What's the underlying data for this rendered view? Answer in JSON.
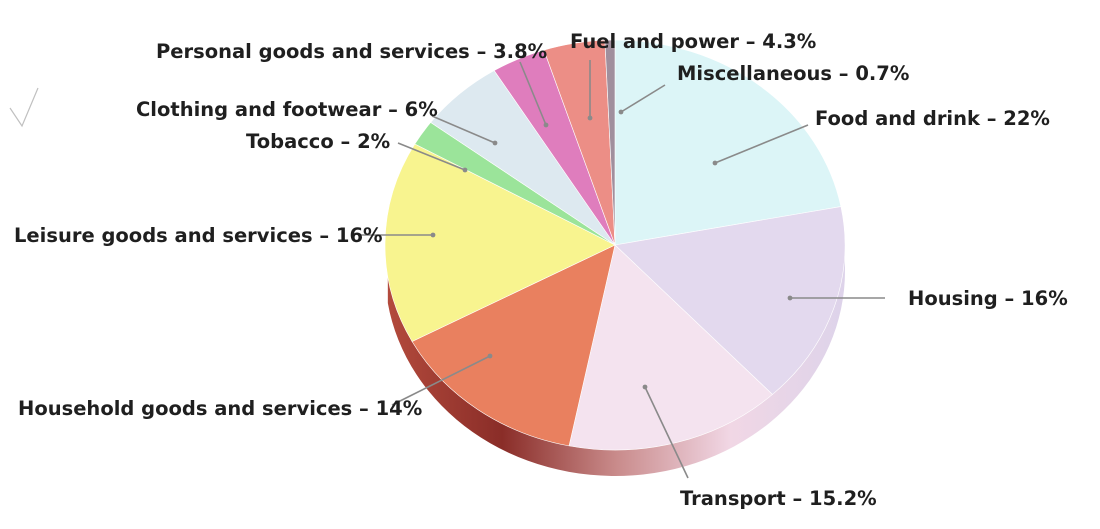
{
  "chart_data": {
    "type": "pie",
    "title": "",
    "series": [
      {
        "name": "",
        "slices": [
          {
            "label": "Food and drink",
            "value": 22,
            "text": "Food and drink – 22%",
            "color": "#dcf5f7"
          },
          {
            "label": "Housing",
            "value": 16,
            "text": "Housing – 16%",
            "color": "#e3d9ee"
          },
          {
            "label": "Transport",
            "value": 15.2,
            "text": "Transport – 15.2%",
            "color": "#f4e3ef"
          },
          {
            "label": "Household goods and services",
            "value": 14,
            "text": "Household goods and services – 14%",
            "color": "#e9805f"
          },
          {
            "label": "Leisure goods and services",
            "value": 16,
            "text": "Leisure goods and services – 16%",
            "color": "#f8f48f"
          },
          {
            "label": "Tobacco",
            "value": 2,
            "text": "Tobacco – 2%",
            "color": "#9be49a"
          },
          {
            "label": "Clothing and footwear",
            "value": 6,
            "text": "Clothing and footwear – 6%",
            "color": "#dde9f0"
          },
          {
            "label": "Personal goods and services",
            "value": 3.8,
            "text": "Personal goods and services – 3.8%",
            "color": "#df7dbd"
          },
          {
            "label": "Fuel and power",
            "value": 4.3,
            "text": "Fuel and power – 4.3%",
            "color": "#ec8e86"
          },
          {
            "label": "Miscellaneous",
            "value": 0.7,
            "text": "Miscellaneous – 0.7%",
            "color": "#a08f9d"
          }
        ]
      }
    ],
    "start_angle": "12 o'clock",
    "direction": "clockwise",
    "style": "3d tilted pie with labels and leader lines",
    "legend": "none"
  }
}
